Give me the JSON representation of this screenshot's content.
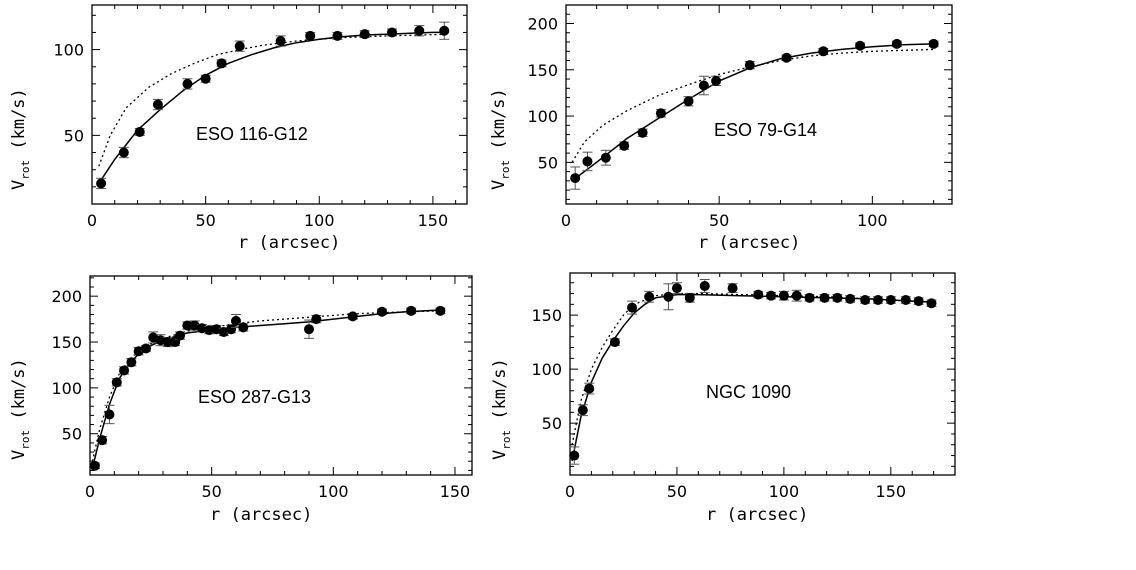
{
  "chart_data": [
    {
      "type": "scatter",
      "title": "ESO 116-G12",
      "xlabel": "r (arcsec)",
      "ylabel_main": "V",
      "ylabel_sub": "rot",
      "ylabel_unit": " (km/s)",
      "xlim": [
        0,
        165
      ],
      "ylim": [
        10,
        126
      ],
      "xticks": [
        0,
        50,
        100,
        150
      ],
      "yticks": [
        50,
        100
      ],
      "points": [
        [
          4,
          22
        ],
        [
          14,
          40
        ],
        [
          21,
          52
        ],
        [
          29,
          68
        ],
        [
          42,
          80
        ],
        [
          50,
          83
        ],
        [
          57,
          92
        ],
        [
          65,
          102
        ],
        [
          83,
          105
        ],
        [
          96,
          108
        ],
        [
          108,
          108
        ],
        [
          120,
          109
        ],
        [
          132,
          110
        ],
        [
          144,
          111
        ],
        [
          155,
          111
        ]
      ],
      "errors": [
        3,
        3,
        2,
        3,
        3,
        2,
        2,
        3,
        3,
        2,
        2,
        2,
        2,
        3,
        5
      ],
      "series": [
        {
          "name": "model-solid",
          "style": "solid",
          "x": [
            3,
            10,
            20,
            30,
            40,
            50,
            60,
            70,
            80,
            90,
            100,
            110,
            120,
            130,
            140,
            150,
            157
          ],
          "y": [
            22,
            36,
            53,
            65,
            76,
            85,
            92,
            97,
            101,
            104,
            106,
            107.5,
            108.5,
            109,
            109.5,
            110,
            110
          ]
        },
        {
          "name": "model-dotted",
          "style": "dotted",
          "x": [
            3,
            8,
            15,
            25,
            35,
            45,
            55,
            65,
            75,
            90,
            110,
            130,
            157
          ],
          "y": [
            32,
            50,
            66,
            78,
            86,
            92,
            97,
            100,
            102.5,
            105,
            107,
            108,
            109
          ]
        }
      ]
    },
    {
      "type": "scatter",
      "title": "ESO 79-G14",
      "xlabel": "r (arcsec)",
      "ylabel_main": "V",
      "ylabel_sub": "rot",
      "ylabel_unit": " (km/s)",
      "xlim": [
        0,
        126
      ],
      "ylim": [
        5,
        220
      ],
      "xticks": [
        0,
        50,
        100
      ],
      "yticks": [
        50,
        100,
        150,
        200
      ],
      "points": [
        [
          3,
          33
        ],
        [
          7,
          51
        ],
        [
          13,
          55
        ],
        [
          19,
          68
        ],
        [
          25,
          82
        ],
        [
          31,
          103
        ],
        [
          40,
          116
        ],
        [
          45,
          133
        ],
        [
          49,
          138
        ],
        [
          60,
          155
        ],
        [
          72,
          163
        ],
        [
          84,
          170
        ],
        [
          96,
          176
        ],
        [
          108,
          178
        ],
        [
          120,
          178
        ]
      ],
      "errors": [
        12,
        10,
        8,
        4,
        4,
        4,
        5,
        10,
        5,
        4,
        3,
        3,
        3,
        3,
        3
      ],
      "series": [
        {
          "name": "model-solid",
          "style": "solid",
          "x": [
            2,
            10,
            20,
            30,
            40,
            50,
            60,
            70,
            80,
            90,
            100,
            110,
            120
          ],
          "y": [
            30,
            50,
            76,
            97,
            118,
            138,
            152,
            162,
            168,
            172,
            175,
            177,
            178
          ]
        },
        {
          "name": "model-dotted",
          "style": "dotted",
          "x": [
            2,
            6,
            12,
            20,
            30,
            40,
            50,
            60,
            70,
            80,
            90,
            100,
            120
          ],
          "y": [
            50,
            72,
            90,
            106,
            122,
            134,
            145,
            153,
            160,
            165,
            168,
            170,
            172
          ]
        }
      ]
    },
    {
      "type": "scatter",
      "title": "ESO 287-G13",
      "xlabel": "r (arcsec)",
      "ylabel_main": "V",
      "ylabel_sub": "rot",
      "ylabel_unit": " (km/s)",
      "xlim": [
        0,
        157
      ],
      "ylim": [
        5,
        222
      ],
      "xticks": [
        0,
        50,
        100,
        150
      ],
      "yticks": [
        50,
        100,
        150,
        200
      ],
      "points": [
        [
          2,
          15
        ],
        [
          5,
          43
        ],
        [
          8,
          71
        ],
        [
          11,
          106
        ],
        [
          14,
          119
        ],
        [
          17,
          128
        ],
        [
          20,
          140
        ],
        [
          23,
          143
        ],
        [
          26,
          155
        ],
        [
          29,
          152
        ],
        [
          32,
          150
        ],
        [
          35,
          150
        ],
        [
          37,
          157
        ],
        [
          40,
          168
        ],
        [
          43,
          168
        ],
        [
          46,
          165
        ],
        [
          49,
          163
        ],
        [
          52,
          164
        ],
        [
          55,
          161
        ],
        [
          58,
          164
        ],
        [
          60,
          173
        ],
        [
          63,
          166
        ],
        [
          90,
          164
        ],
        [
          93,
          175
        ],
        [
          108,
          178
        ],
        [
          120,
          183
        ],
        [
          132,
          184
        ],
        [
          144,
          184
        ]
      ],
      "errors": [
        3,
        4,
        10,
        4,
        4,
        4,
        4,
        3,
        6,
        6,
        5,
        4,
        4,
        4,
        5,
        4,
        4,
        4,
        4,
        4,
        7,
        4,
        10,
        4,
        3,
        3,
        3,
        3
      ],
      "series": [
        {
          "name": "model-solid",
          "style": "solid",
          "x": [
            1,
            4,
            8,
            12,
            16,
            20,
            25,
            30,
            35,
            40,
            50,
            60,
            70,
            80,
            90,
            100,
            110,
            120,
            130,
            145
          ],
          "y": [
            12,
            45,
            82,
            110,
            126,
            137,
            146,
            152,
            156,
            160,
            163,
            166,
            168,
            170,
            172,
            175,
            178,
            181,
            183,
            185
          ]
        },
        {
          "name": "model-dotted",
          "style": "dotted",
          "x": [
            1,
            4,
            8,
            12,
            16,
            20,
            25,
            30,
            40,
            50,
            60,
            70,
            80,
            90,
            100,
            110,
            120,
            130,
            145
          ],
          "y": [
            20,
            55,
            90,
            115,
            130,
            140,
            148,
            154,
            162,
            166,
            170,
            173,
            175,
            177,
            179,
            181,
            182,
            183,
            184
          ]
        }
      ]
    },
    {
      "type": "scatter",
      "title": "NGC 1090",
      "xlabel": "r (arcsec)",
      "ylabel_main": "V",
      "ylabel_sub": "rot",
      "ylabel_unit": " (km/s)",
      "xlim": [
        0,
        180
      ],
      "ylim": [
        2,
        189
      ],
      "xticks": [
        0,
        50,
        100,
        150
      ],
      "yticks": [
        50,
        100,
        150
      ],
      "points": [
        [
          2,
          20
        ],
        [
          6,
          62
        ],
        [
          9,
          82
        ],
        [
          21,
          125
        ],
        [
          29,
          157
        ],
        [
          37,
          167
        ],
        [
          46,
          167
        ],
        [
          50,
          175
        ],
        [
          56,
          166
        ],
        [
          63,
          177
        ],
        [
          76,
          175
        ],
        [
          88,
          169
        ],
        [
          94,
          168
        ],
        [
          100,
          168
        ],
        [
          106,
          168
        ],
        [
          112,
          166
        ],
        [
          119,
          166
        ],
        [
          125,
          166
        ],
        [
          131,
          165
        ],
        [
          138,
          164
        ],
        [
          144,
          164
        ],
        [
          150,
          164
        ],
        [
          157,
          164
        ],
        [
          163,
          163
        ],
        [
          169,
          161
        ]
      ],
      "errors": [
        8,
        5,
        5,
        3,
        6,
        5,
        12,
        5,
        4,
        6,
        4,
        3,
        3,
        4,
        5,
        3,
        3,
        3,
        3,
        3,
        3,
        3,
        3,
        3,
        3
      ],
      "series": [
        {
          "name": "model-solid",
          "style": "solid",
          "x": [
            1,
            5,
            10,
            15,
            20,
            25,
            30,
            35,
            40,
            50,
            60,
            80,
            100,
            120,
            140,
            160,
            170
          ],
          "y": [
            15,
            55,
            88,
            110,
            126,
            140,
            152,
            160,
            166,
            169,
            169,
            168,
            167,
            166,
            165,
            163,
            162
          ]
        },
        {
          "name": "model-dotted",
          "style": "dotted",
          "x": [
            1,
            5,
            10,
            15,
            20,
            25,
            30,
            40,
            50,
            60,
            80,
            100,
            120,
            140,
            160,
            170
          ],
          "y": [
            30,
            70,
            100,
            120,
            136,
            150,
            160,
            168,
            170,
            170,
            169,
            168,
            167,
            165,
            163,
            162
          ]
        }
      ]
    }
  ]
}
